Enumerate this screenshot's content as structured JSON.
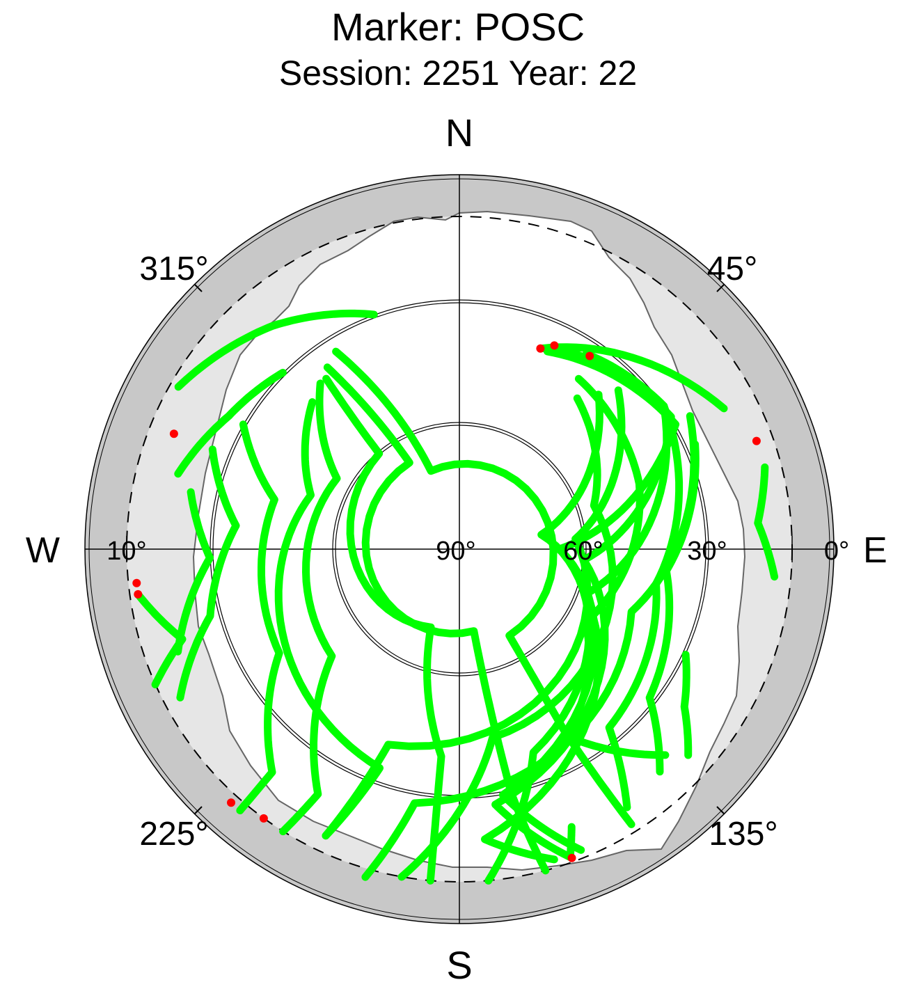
{
  "title": "Marker: POSC",
  "subtitle": "Session: 2251 Year: 22",
  "compass": {
    "north": "N",
    "south": "S",
    "east": "E",
    "west": "W"
  },
  "azimuth_labels": {
    "az45": "45°",
    "az135": "135°",
    "az225": "225°",
    "az315": "315°"
  },
  "elevation_labels": {
    "e90": "90°",
    "e60": "60°",
    "e30": "30°",
    "e10": "10°",
    "e0": "0°"
  },
  "colors": {
    "outer_band": "#c8c8c8",
    "mask_region": "#e6e6e6",
    "track": "#00ff00",
    "track_start": "#ff0000",
    "grid": "#000000"
  },
  "chart_data": {
    "type": "scatter",
    "projection": "polar-skyplot",
    "title": "Marker: POSC",
    "subtitle": "Session: 2251 Year: 22",
    "azimuth_ticks_deg": [
      45,
      135,
      225,
      315
    ],
    "elevation_rings_deg": [
      60,
      30,
      10,
      0
    ],
    "cutoff_elevation_deg": 5,
    "series": [
      {
        "label_marker": "start",
        "points": [
          [
            22.0,
            38.0
          ],
          [
            62.0,
            18.0
          ]
        ]
      },
      {
        "points": [
          [
            24.0,
            38.0
          ],
          [
            60.0,
            30.0
          ],
          [
            90.0,
            66.0
          ],
          [
            170.0,
            30.0
          ],
          [
            158.0,
            12.0
          ]
        ]
      },
      {
        "points": [
          [
            28.0,
            36.0
          ],
          [
            58.0,
            30.0
          ],
          [
            95.0,
            60.0
          ],
          [
            172.0,
            28.0
          ],
          [
            160.0,
            11.0
          ]
        ]
      },
      {
        "points": [
          [
            33.0,
            34.0
          ],
          [
            55.0,
            30.0
          ],
          [
            110.0,
            58.0
          ],
          [
            175.0,
            20.0
          ],
          [
            163.0,
            12.0
          ]
        ]
      },
      {
        "points": [
          [
            35.0,
            40.0
          ],
          [
            70.0,
            44.0
          ],
          [
            120.0,
            55.0
          ],
          [
            150.0,
            38.0
          ],
          [
            135.0,
            20.0
          ]
        ]
      },
      {
        "points": [
          [
            38.0,
            44.0
          ],
          [
            72.0,
            56.0
          ],
          [
            170.0,
            44.0
          ],
          [
            190.0,
            10.0
          ]
        ]
      },
      {
        "points": [
          [
            42.0,
            40.0
          ],
          [
            80.0,
            70.0
          ],
          [
            160.0,
            38.0
          ],
          [
            175.0,
            10.0
          ]
        ]
      },
      {
        "points": [
          [
            45.0,
            36.0
          ],
          [
            85.0,
            62.0
          ],
          [
            200.0,
            40.0
          ],
          [
            205.0,
            14.0
          ]
        ]
      },
      {
        "points": [
          [
            55.0,
            30.0
          ],
          [
            100.0,
            42.0
          ],
          [
            140.0,
            34.0
          ],
          [
            147.0,
            16.0
          ]
        ]
      },
      {
        "points": [
          [
            60.0,
            26.0
          ],
          [
            110.0,
            46.0
          ],
          [
            190.0,
            28.0
          ],
          [
            196.0,
            8.0
          ]
        ]
      },
      {
        "points": [
          [
            66.0,
            28.0
          ],
          [
            96.0,
            40.0
          ],
          [
            128.0,
            32.0
          ],
          [
            138.0,
            18.0
          ]
        ]
      },
      {
        "points": [
          [
            75.0,
            14.0
          ],
          [
            85.0,
            18.0
          ],
          [
            95.0,
            14.0
          ]
        ]
      },
      {
        "points": [
          [
            115.0,
            30.0
          ],
          [
            125.0,
            24.0
          ],
          [
            132.0,
            16.0
          ]
        ]
      },
      {
        "points": [
          [
            158.0,
            18.0
          ],
          [
            160.0,
            12.0
          ]
        ]
      },
      {
        "points": [
          [
            315.0,
            40.0
          ],
          [
            290.0,
            52.0
          ],
          [
            260.0,
            46.0
          ],
          [
            200.0,
            34.0
          ],
          [
            205.0,
            14.0
          ]
        ]
      },
      {
        "points": [
          [
            320.0,
            38.0
          ],
          [
            300.0,
            56.0
          ],
          [
            230.0,
            50.0
          ],
          [
            210.0,
            22.0
          ],
          [
            212.0,
            10.0
          ]
        ]
      },
      {
        "points": [
          [
            322.0,
            38.0
          ],
          [
            320.0,
            60.0
          ],
          [
            200.0,
            70.0
          ],
          [
            185.0,
            40.0
          ],
          [
            185.0,
            10.0
          ]
        ]
      },
      {
        "points": [
          [
            324.0,
            36.0
          ],
          [
            330.0,
            66.0
          ],
          [
            170.0,
            70.0
          ],
          [
            168.0,
            30.0
          ],
          [
            165.0,
            10.0
          ]
        ]
      },
      {
        "points": [
          [
            328.0,
            34.0
          ],
          [
            340.0,
            70.0
          ],
          [
            150.0,
            66.0
          ],
          [
            150.0,
            40.0
          ],
          [
            148.0,
            12.0
          ]
        ]
      },
      {
        "points": [
          [
            300.0,
            30.0
          ],
          [
            285.0,
            44.0
          ],
          [
            240.0,
            40.0
          ],
          [
            220.0,
            20.0
          ],
          [
            220.0,
            8.0
          ]
        ]
      },
      {
        "points": [
          [
            292.0,
            26.0
          ],
          [
            276.0,
            36.0
          ],
          [
            255.0,
            28.0
          ],
          [
            242.0,
            14.0
          ]
        ]
      },
      {
        "points": [
          [
            282.0,
            24.0
          ],
          [
            268.0,
            30.0
          ],
          [
            250.0,
            18.0
          ]
        ]
      },
      {
        "points": [
          [
            262.0,
            12.0
          ],
          [
            252.0,
            20.0
          ],
          [
            246.0,
            10.0
          ]
        ]
      },
      {
        "points": [
          [
            300.0,
            12.0
          ],
          [
            320.0,
            20.0
          ],
          [
            340.0,
            30.0
          ]
        ]
      },
      {
        "points": [
          [
            285.0,
            20.0
          ],
          [
            300.0,
            26.0
          ],
          [
            315.0,
            30.0
          ]
        ]
      }
    ],
    "start_markers": [
      [
        22.0,
        38.0
      ],
      [
        25.0,
        36.0
      ],
      [
        34.0,
        34.0
      ],
      [
        70.0,
        14.0
      ],
      [
        262.0,
        12.0
      ],
      [
        264.0,
        12.0
      ],
      [
        292.0,
        16.0
      ],
      [
        222.0,
        8.0
      ],
      [
        216.0,
        10.0
      ],
      [
        160.0,
        11.0
      ]
    ]
  }
}
